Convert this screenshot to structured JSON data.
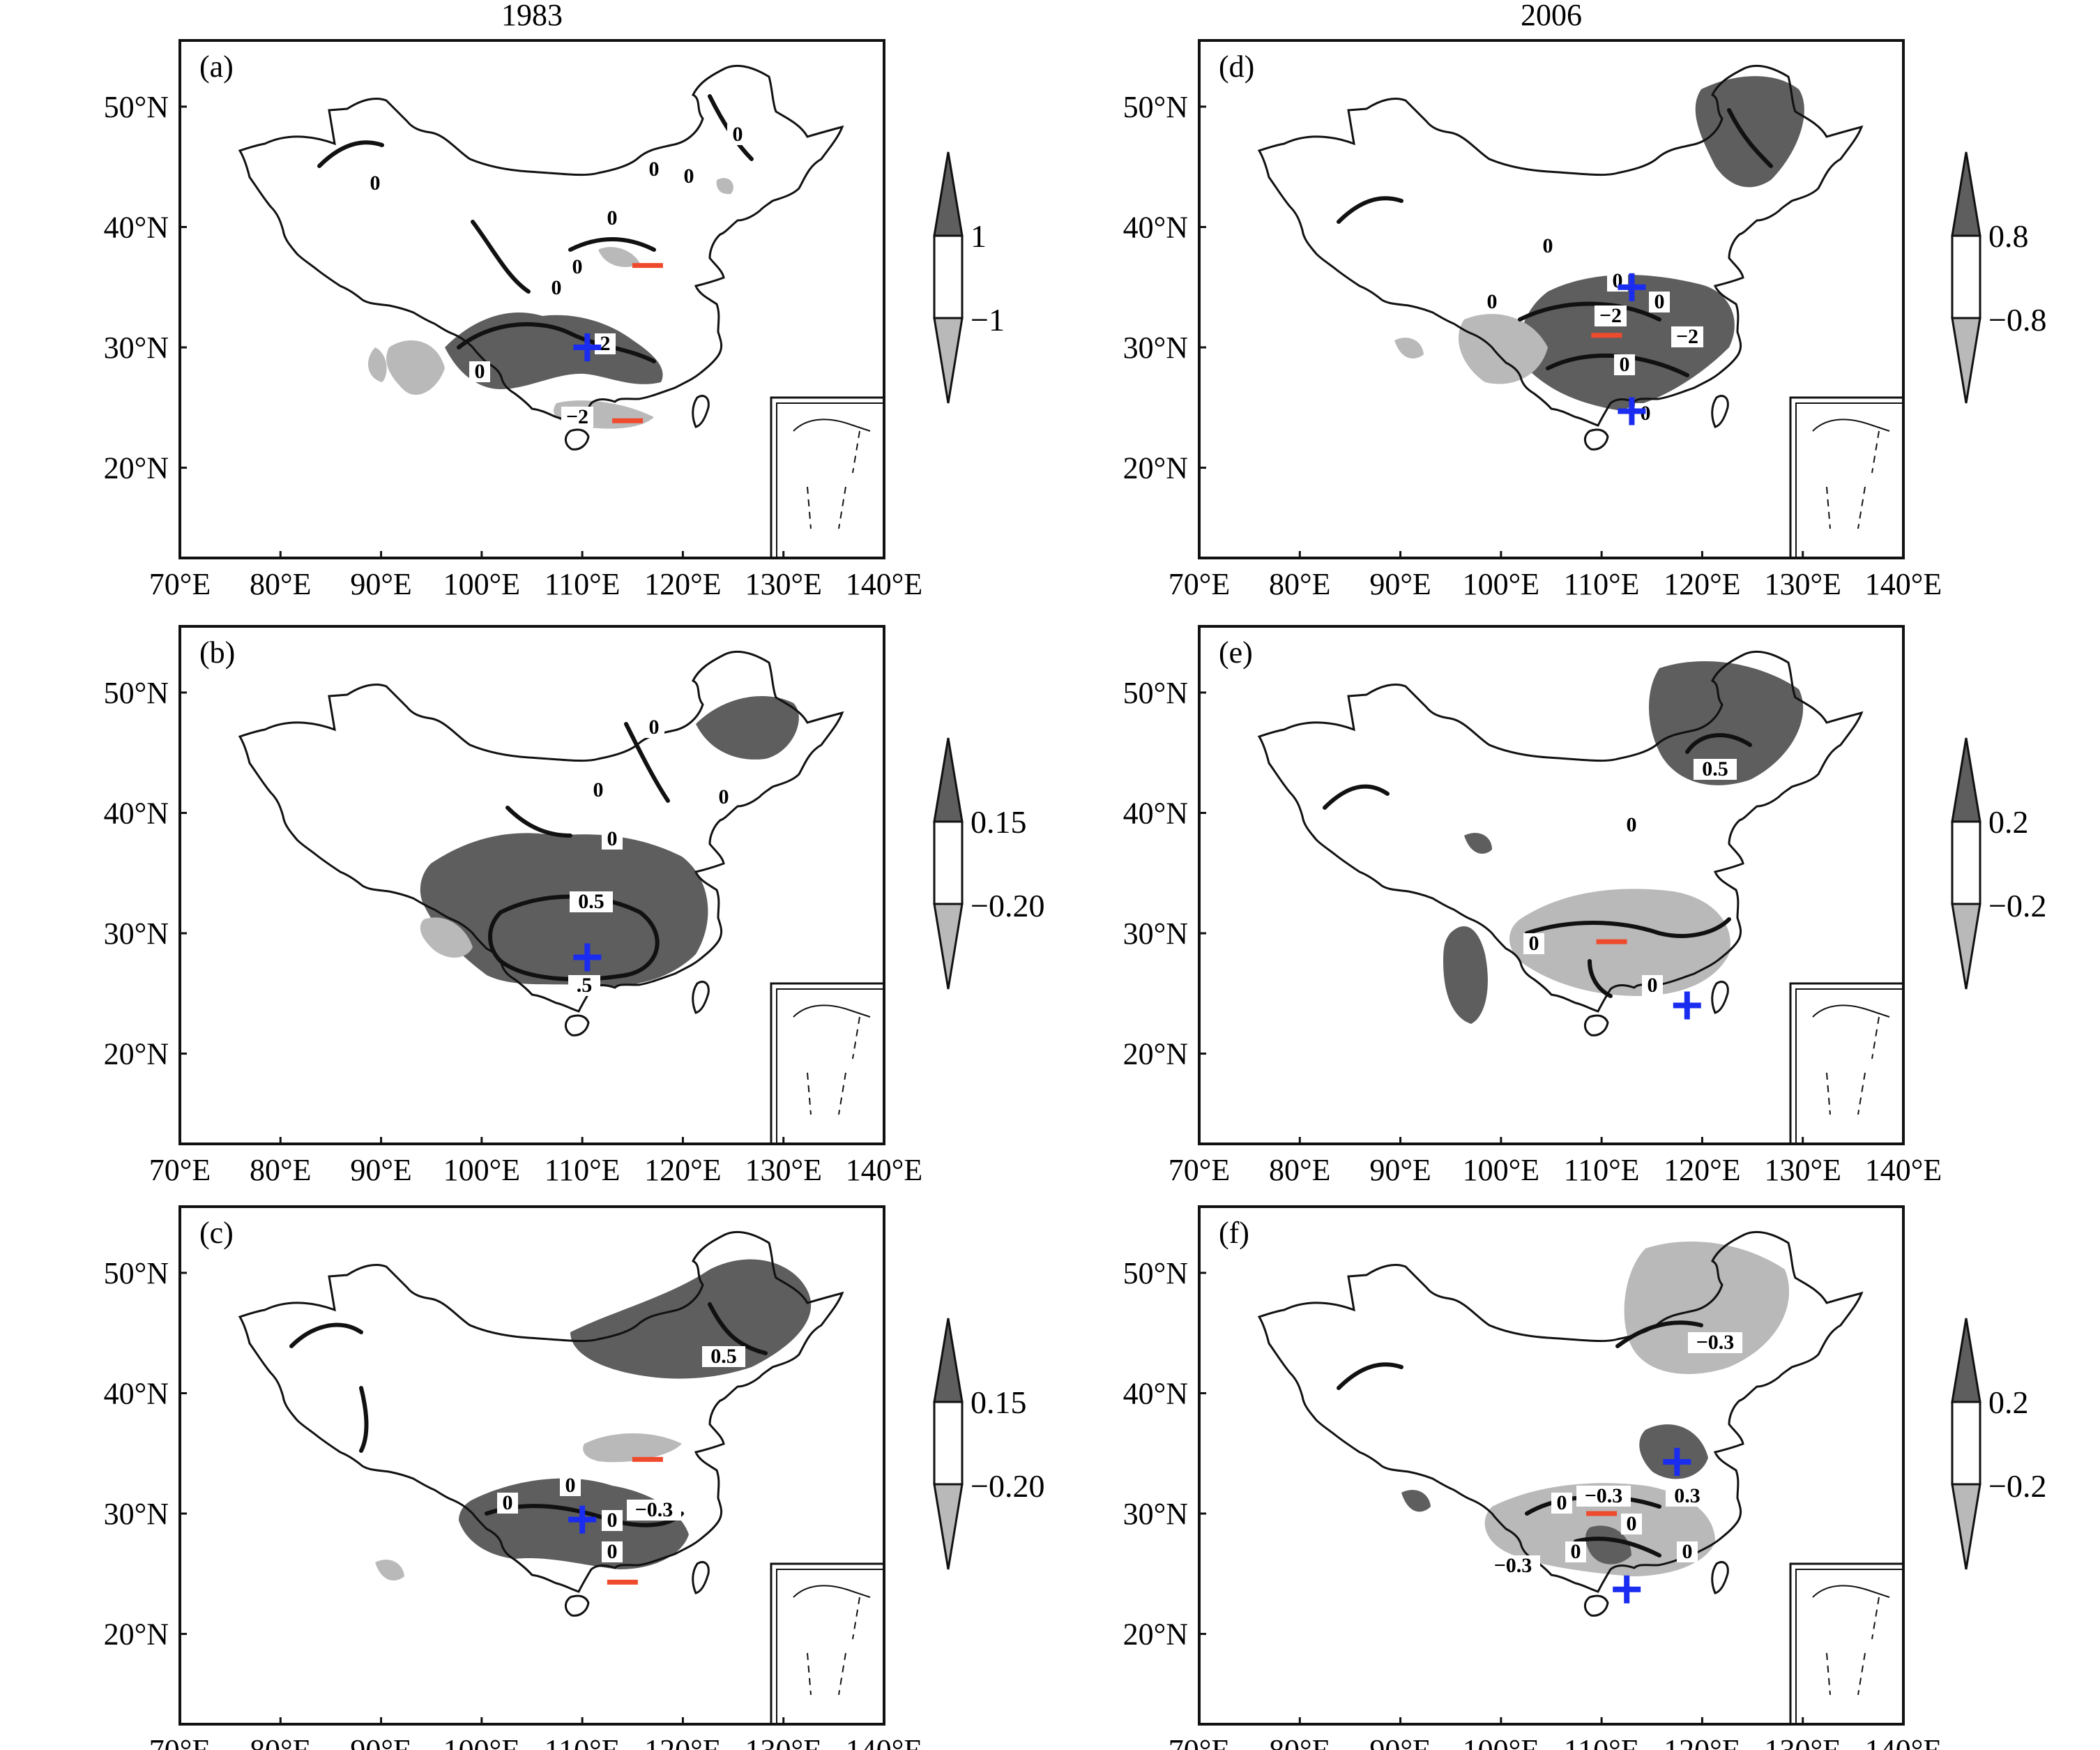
{
  "figure": {
    "column_titles": [
      "1983",
      "2006"
    ],
    "x_ticks": [
      "70°E",
      "80°E",
      "90°E",
      "100°E",
      "110°E",
      "120°E",
      "130°E",
      "140°E"
    ],
    "y_ticks": [
      "50°N",
      "40°N",
      "30°N",
      "20°N"
    ],
    "shade_colors": {
      "high": "#5e5e5e",
      "low": "#b9b9b9",
      "mid": "#ffffff"
    },
    "marker_colors": {
      "plus": "#1a2cf0",
      "minus": "#ef4a2d"
    }
  },
  "panels": [
    {
      "id": "a",
      "label": "(a)",
      "column": 0,
      "row": 0,
      "colorbar": {
        "upper": "1",
        "lower": "−1"
      },
      "contour_labels": [
        "0",
        "0",
        "0",
        "0",
        "0",
        "0",
        "0",
        "0",
        "2",
        "−2"
      ],
      "plus_markers": [
        [
          110.5,
          30.0
        ]
      ],
      "minus_markers": [
        [
          116.5,
          36.8
        ],
        [
          114.5,
          23.9
        ]
      ]
    },
    {
      "id": "b",
      "label": "(b)",
      "column": 0,
      "row": 1,
      "colorbar": {
        "upper": "0.15",
        "lower": "−0.20"
      },
      "contour_labels": [
        "0",
        "0",
        "0",
        "0",
        "0.5",
        ".5"
      ],
      "plus_markers": [
        [
          110.5,
          28.0
        ]
      ],
      "minus_markers": []
    },
    {
      "id": "c",
      "label": "(c)",
      "column": 0,
      "row": 2,
      "colorbar": {
        "upper": "0.15",
        "lower": "−0.20"
      },
      "contour_labels": [
        "0.5",
        "0",
        "0",
        "0",
        "−0.3",
        "0"
      ],
      "plus_markers": [
        [
          110.0,
          29.5
        ]
      ],
      "minus_markers": [
        [
          116.5,
          34.5
        ],
        [
          114.0,
          24.3
        ]
      ]
    },
    {
      "id": "d",
      "label": "(d)",
      "column": 1,
      "row": 0,
      "colorbar": {
        "upper": "0.8",
        "lower": "−0.8"
      },
      "contour_labels": [
        "0",
        "0",
        "0",
        "0",
        "−2",
        "−2",
        "0",
        "0"
      ],
      "plus_markers": [
        [
          113.0,
          35.0
        ],
        [
          113.0,
          24.7
        ]
      ],
      "minus_markers": [
        [
          110.5,
          31.0
        ]
      ]
    },
    {
      "id": "e",
      "label": "(e)",
      "column": 1,
      "row": 1,
      "colorbar": {
        "upper": "0.2",
        "lower": "−0.2"
      },
      "contour_labels": [
        "0.5",
        "0",
        "0",
        "0"
      ],
      "plus_markers": [
        [
          118.5,
          24.0
        ]
      ],
      "minus_markers": [
        [
          111.0,
          29.3
        ]
      ]
    },
    {
      "id": "f",
      "label": "(f)",
      "column": 1,
      "row": 2,
      "colorbar": {
        "upper": "0.2",
        "lower": "−0.2"
      },
      "contour_labels": [
        "−0.3",
        "−0.3",
        "0",
        "0",
        "0",
        "0.3",
        "−0.3",
        "0"
      ],
      "plus_markers": [
        [
          117.5,
          34.3
        ],
        [
          112.5,
          23.7
        ]
      ],
      "minus_markers": [
        [
          110.0,
          30.0
        ]
      ]
    }
  ]
}
